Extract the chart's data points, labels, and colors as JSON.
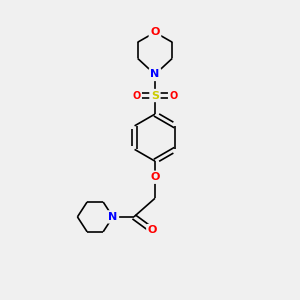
{
  "background_color": "#f0f0f0",
  "bond_color": "#000000",
  "bond_width": 1.2,
  "atom_colors": {
    "C": "#000000",
    "N": "#0000ff",
    "O": "#ff0000",
    "S": "#cccc00"
  },
  "figsize": [
    3.0,
    3.0
  ],
  "dpi": 100,
  "xlim": [
    0,
    10
  ],
  "ylim": [
    0,
    12
  ]
}
